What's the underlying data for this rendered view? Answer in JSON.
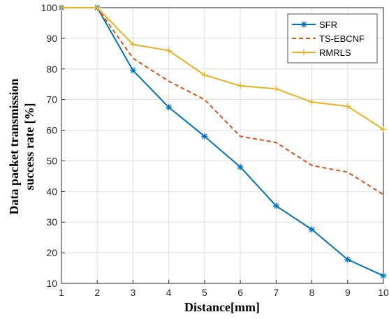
{
  "chart_data": {
    "type": "line",
    "title": "",
    "xlabel": "Distance[mm]",
    "ylabel_lines": [
      "Data packet transmission",
      "success rate [%]"
    ],
    "x": [
      1,
      2,
      3,
      4,
      5,
      6,
      7,
      8,
      9,
      10
    ],
    "xlim": [
      1,
      10
    ],
    "ylim": [
      10,
      100
    ],
    "xticks": [
      "1",
      "2",
      "3",
      "4",
      "5",
      "6",
      "7",
      "8",
      "9",
      "10"
    ],
    "yticks": [
      "10",
      "20",
      "30",
      "40",
      "50",
      "60",
      "70",
      "80",
      "90",
      "100"
    ],
    "grid": true,
    "legend_position": "top-right",
    "series": [
      {
        "name": "SFR",
        "color": "#0072BD",
        "line_style": "solid",
        "marker": "asterisk",
        "values": [
          100,
          100,
          79.5,
          67.5,
          58,
          48,
          35.3,
          27.6,
          17.8,
          12.5
        ]
      },
      {
        "name": "TS-EBCNF",
        "color": "#D95319",
        "line_style": "dashed",
        "marker": "none",
        "values": [
          100,
          100,
          83.5,
          76,
          70,
          58,
          56,
          48.5,
          46.3,
          39
        ]
      },
      {
        "name": "RMRLS",
        "color": "#EDB120",
        "line_style": "solid",
        "marker": "plus",
        "values": [
          100,
          100,
          88,
          86,
          78,
          74.5,
          73.5,
          69.2,
          67.8,
          60.3
        ]
      }
    ]
  }
}
